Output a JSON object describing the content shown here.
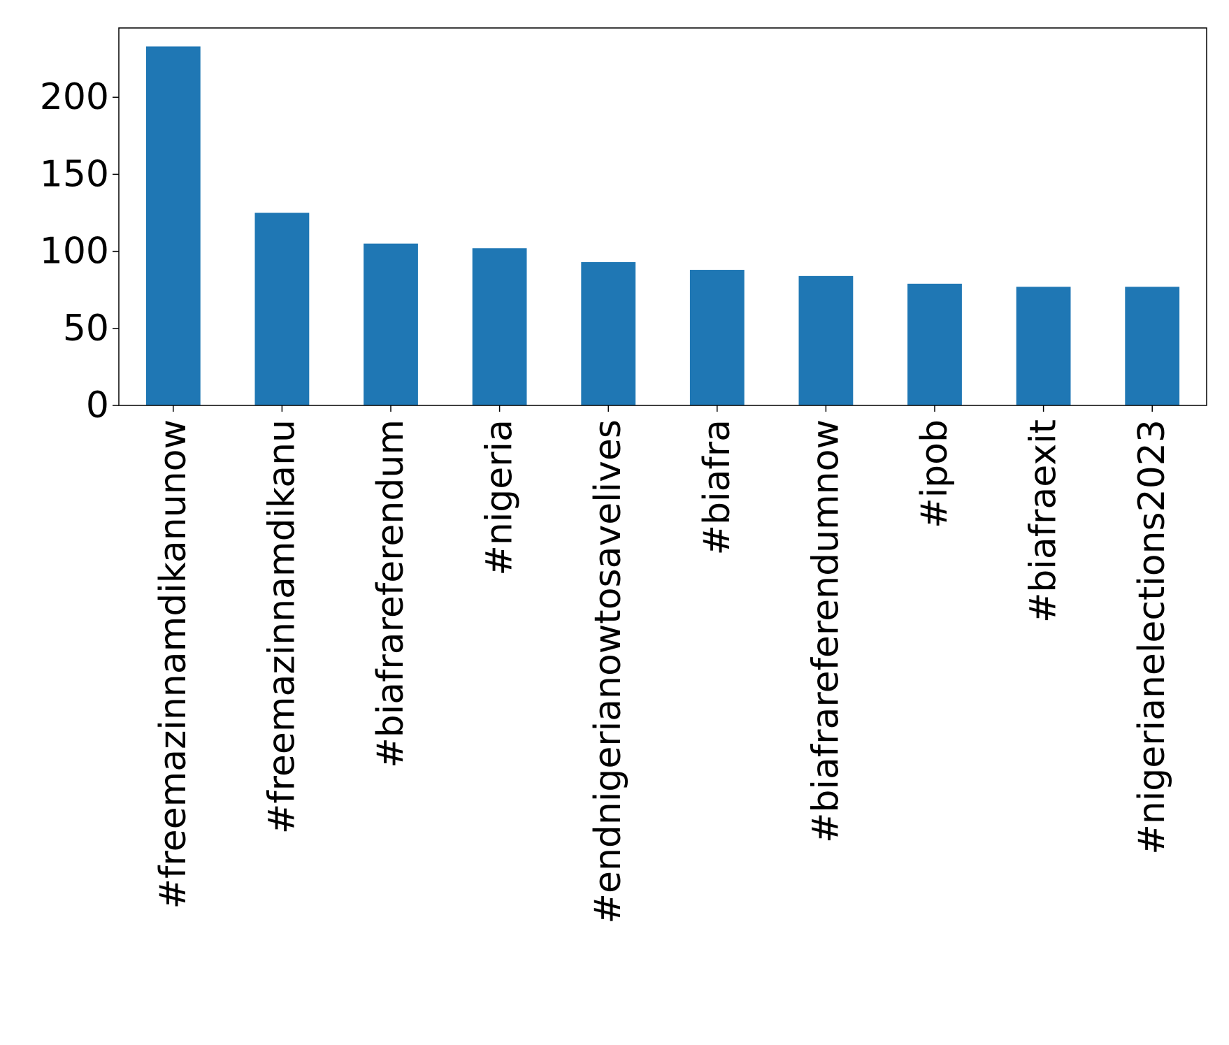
{
  "chart_data": {
    "type": "bar",
    "categories": [
      "#freemazinnamdikanunow",
      "#freemazinnamdikanu",
      "#biafrareferendum",
      "#nigeria",
      "#endnigerianowtosavelives",
      "#biafra",
      "#biafrareferendumnow",
      "#ipob",
      "#biafraexit",
      "#nigerianelections2023"
    ],
    "values": [
      233,
      125,
      105,
      102,
      93,
      88,
      84,
      79,
      77,
      77
    ],
    "yticks": [
      0,
      50,
      100,
      150,
      200
    ],
    "ylim": [
      0,
      245
    ],
    "bar_color": "#1f77b4",
    "grid": false,
    "legend": "none"
  }
}
